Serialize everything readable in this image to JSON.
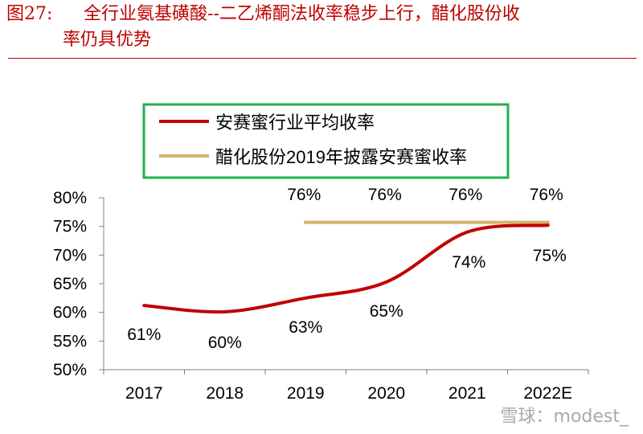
{
  "figure": {
    "label": "图27:",
    "title_line1": "全行业氨基磺酸--二乙烯酮法收率稳步上行，醋化股份收",
    "title_line2": "率仍具优势"
  },
  "watermark": "雪球：modest_",
  "colors": {
    "title": "#c00000",
    "series1": "#c00000",
    "series2": "#d2b56c",
    "legend_border": "#22b14c",
    "axis": "#808080"
  },
  "chart_data": {
    "type": "line",
    "categories": [
      "2017",
      "2018",
      "2019",
      "2020",
      "2021",
      "2022E"
    ],
    "ylim": [
      0.5,
      0.8
    ],
    "yticks": [
      "50%",
      "55%",
      "60%",
      "65%",
      "70%",
      "75%",
      "80%"
    ],
    "grid": false,
    "legend_position": "top",
    "series": [
      {
        "name": "安赛蜜行业平均收率",
        "values": [
          0.612,
          0.601,
          0.625,
          0.653,
          0.74,
          0.752
        ],
        "labels": [
          "61%",
          "60%",
          "63%",
          "65%",
          "74%",
          "75%"
        ]
      },
      {
        "name": "醋化股份2019年披露安赛蜜收率",
        "values": [
          null,
          null,
          0.757,
          0.757,
          0.757,
          0.757
        ],
        "labels": [
          "",
          "",
          "76%",
          "76%",
          "76%",
          "76%"
        ]
      }
    ]
  }
}
